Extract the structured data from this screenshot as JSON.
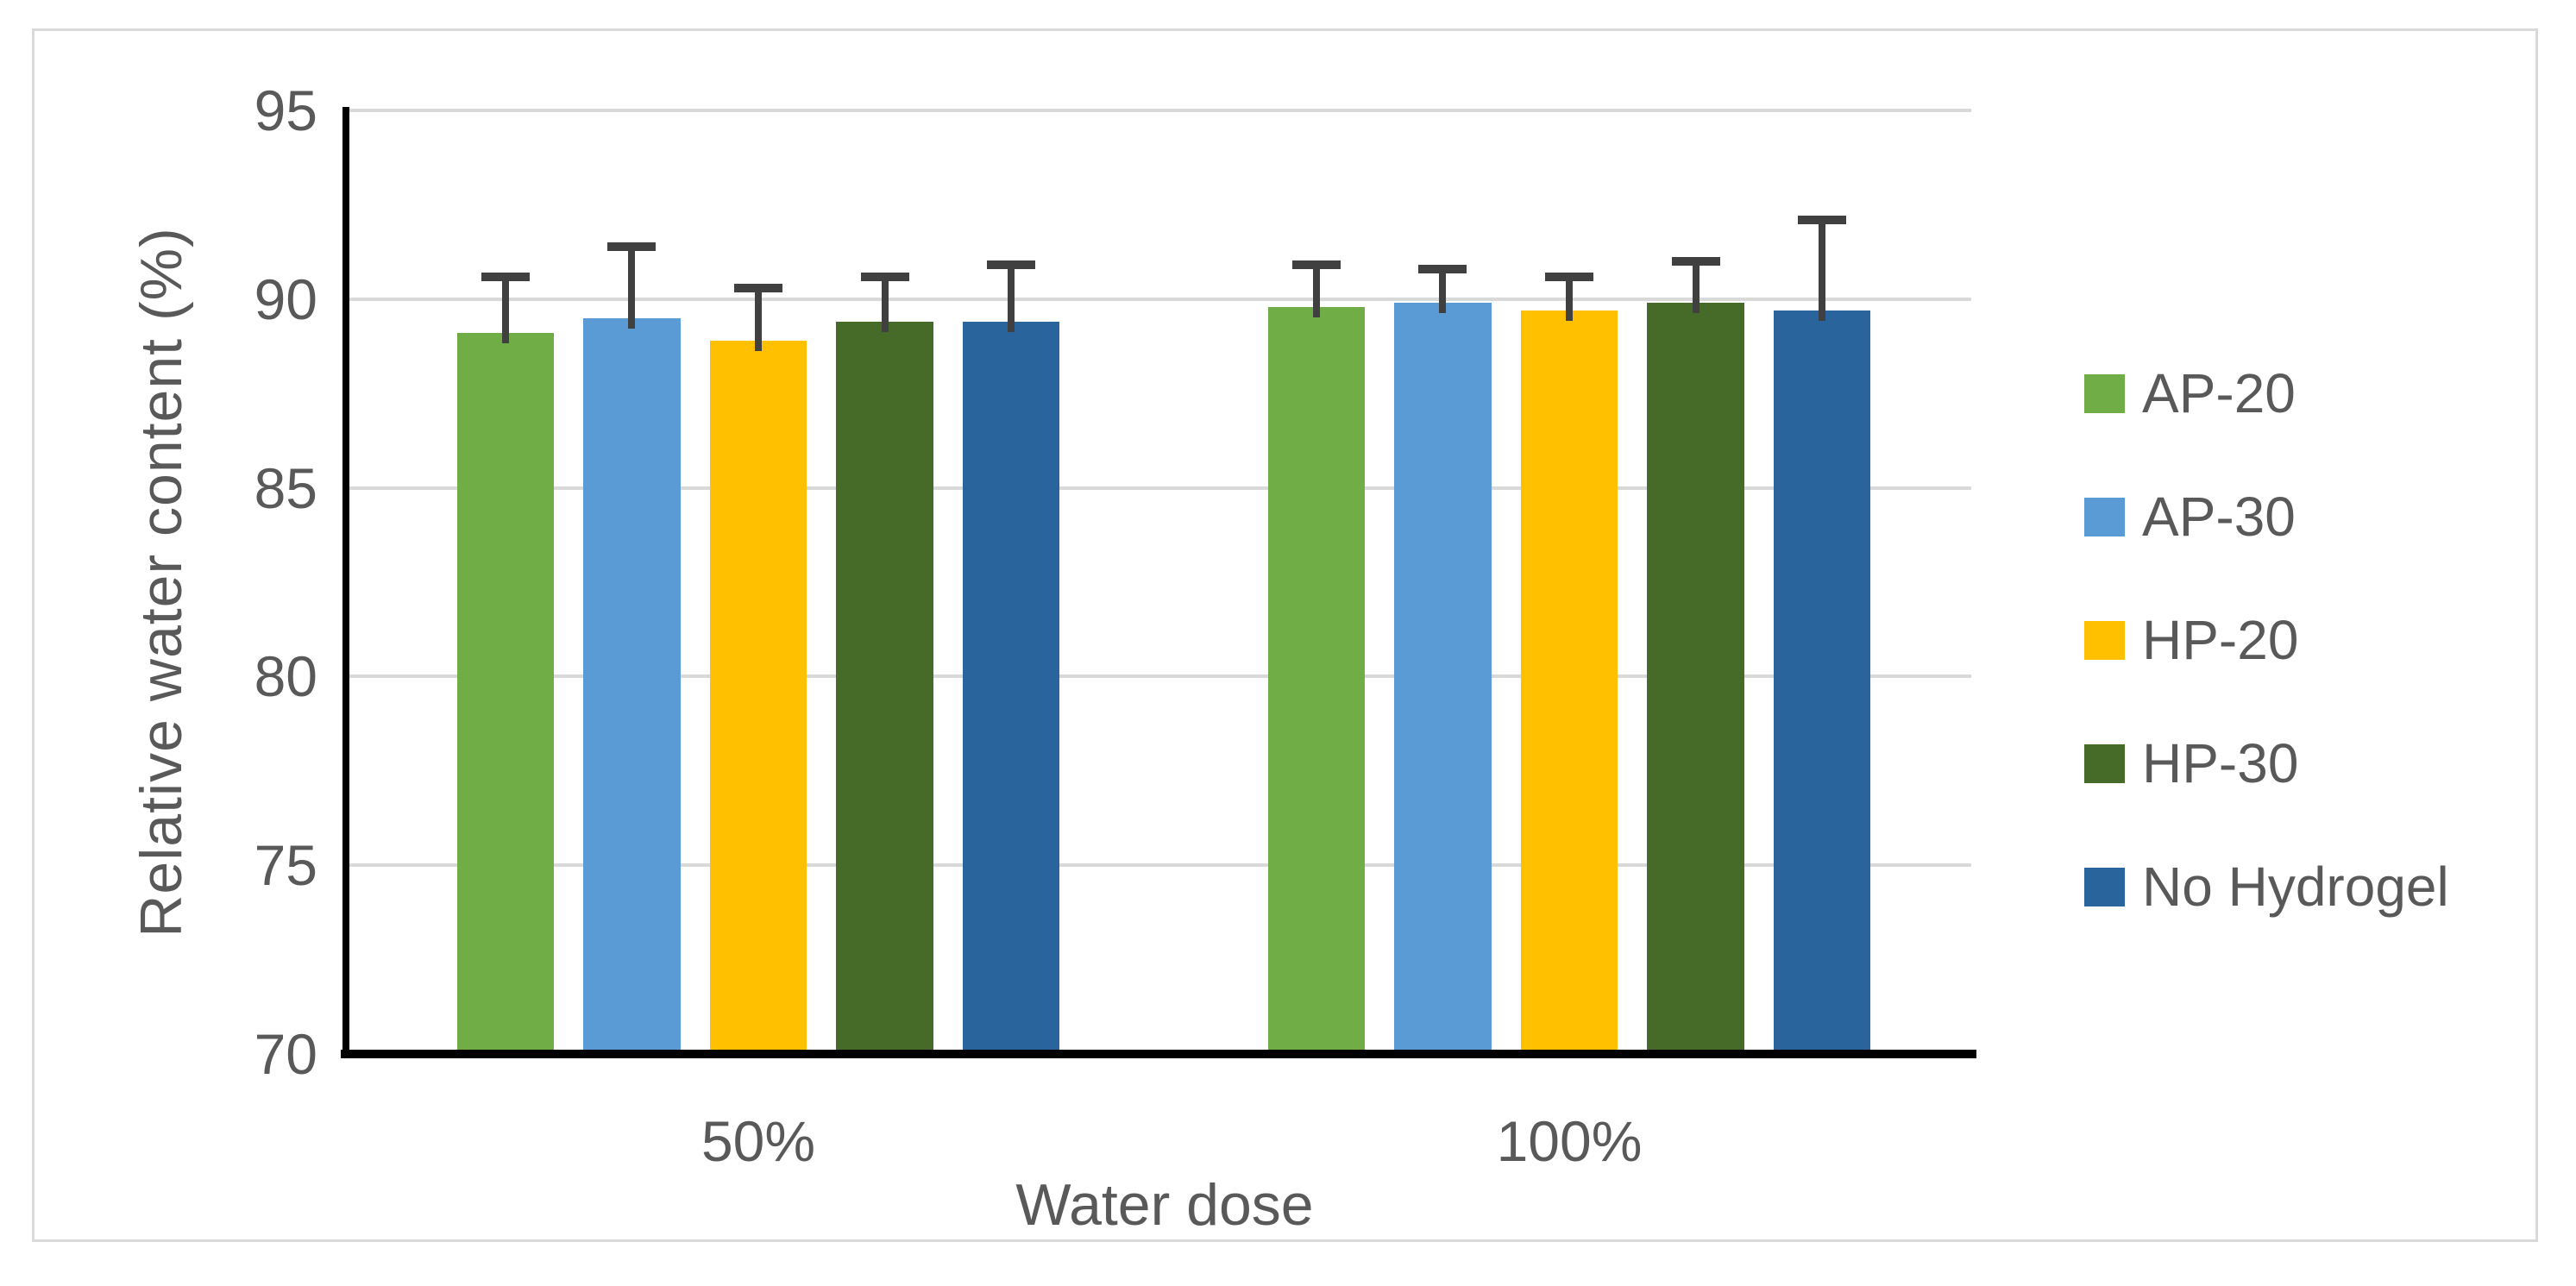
{
  "figure": {
    "background_color": "#ffffff",
    "border_color": "#d9d9d9"
  },
  "chart_data": {
    "type": "bar",
    "title": "",
    "xlabel": "Water dose",
    "ylabel": "Relative water content (%)",
    "categories": [
      "50%",
      "100%"
    ],
    "series": [
      {
        "name": "AP-20",
        "color": "#70ad47",
        "values": [
          89.1,
          89.8
        ],
        "error_plus": [
          1.5,
          1.1
        ]
      },
      {
        "name": "AP-30",
        "color": "#5b9bd5",
        "values": [
          89.5,
          89.9
        ],
        "error_plus": [
          1.9,
          0.9
        ]
      },
      {
        "name": "HP-20",
        "color": "#ffc000",
        "values": [
          88.9,
          89.7
        ],
        "error_plus": [
          1.4,
          0.9
        ]
      },
      {
        "name": "HP-30",
        "color": "#466b29",
        "values": [
          89.4,
          89.9
        ],
        "error_plus": [
          1.2,
          1.1
        ]
      },
      {
        "name": "No Hydrogel",
        "color": "#2a649c",
        "values": [
          89.4,
          89.7
        ],
        "error_plus": [
          1.5,
          2.4
        ]
      }
    ],
    "ylim": [
      70,
      95
    ],
    "yticks": [
      70,
      75,
      80,
      85,
      90,
      95
    ],
    "grid": true,
    "legend_position": "right",
    "colors": {
      "gridline": "#d9d9d9",
      "axis_line": "#000000",
      "tick_label": "#595959",
      "axis_title": "#595959",
      "legend_text": "#595959",
      "error_bar": "#404040"
    }
  }
}
